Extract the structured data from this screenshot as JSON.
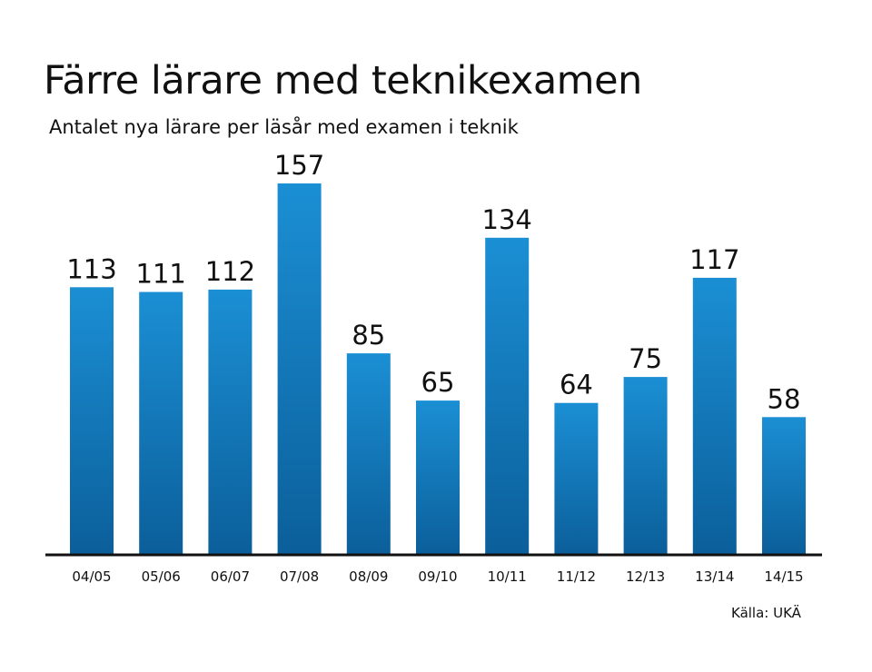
{
  "title": "Färre lärare med teknikexamen",
  "subtitle": "Antalet nya lärare per läsår med examen i teknik",
  "source": "Källa: UKÄ",
  "colors": {
    "bar_top": "#1b8fd4",
    "bar_bottom": "#0b5f9a",
    "axis": "#111111"
  },
  "chart_data": {
    "type": "bar",
    "categories": [
      "04/05",
      "05/06",
      "06/07",
      "07/08",
      "08/09",
      "09/10",
      "10/11",
      "11/12",
      "12/13",
      "13/14",
      "14/15"
    ],
    "values": [
      113,
      111,
      112,
      157,
      85,
      65,
      134,
      64,
      75,
      117,
      58
    ],
    "title": "Färre lärare med teknikexamen",
    "subtitle": "Antalet nya lärare per läsår med examen i teknik",
    "ylim": [
      0,
      157
    ],
    "grid": false,
    "legend": "none"
  }
}
